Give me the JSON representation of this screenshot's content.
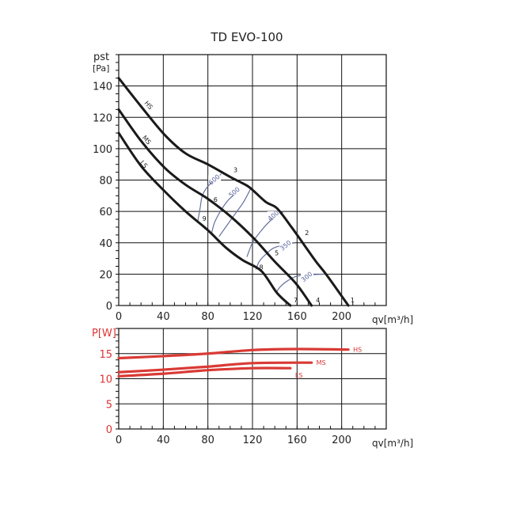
{
  "chart_data": [
    {
      "type": "line",
      "title": "TD EVO-100",
      "ylabel_symbol": "pst",
      "ylabel_unit": "[Pa]",
      "xlabel": "qv[m³/h]",
      "xlim": [
        0,
        240
      ],
      "ylim": [
        0,
        160
      ],
      "xticks": [
        0,
        40,
        80,
        120,
        160,
        200
      ],
      "yticks": [
        0,
        20,
        40,
        60,
        80,
        100,
        120,
        140
      ],
      "grid": true,
      "series": [
        {
          "name": "HS",
          "label_at": [
            20,
            127
          ],
          "points": [
            [
              0,
              145
            ],
            [
              20,
              127
            ],
            [
              41,
              109
            ],
            [
              60,
              97
            ],
            [
              80,
              90
            ],
            [
              100,
              82
            ],
            [
              111,
              78
            ],
            [
              118,
              75
            ],
            [
              132,
              66
            ],
            [
              142,
              62
            ],
            [
              155,
              50
            ],
            [
              166,
              39
            ],
            [
              177,
              28
            ],
            [
              187,
              19
            ],
            [
              206,
              0
            ]
          ]
        },
        {
          "name": "MS",
          "label_at": [
            18,
            105
          ],
          "points": [
            [
              0,
              125
            ],
            [
              20,
              105
            ],
            [
              41,
              88
            ],
            [
              60,
              77
            ],
            [
              80,
              68
            ],
            [
              100,
              57
            ],
            [
              121,
              43
            ],
            [
              140,
              28
            ],
            [
              159,
              14
            ],
            [
              173,
              0
            ]
          ]
        },
        {
          "name": "LS",
          "label_at": [
            16,
            89
          ],
          "points": [
            [
              0,
              110
            ],
            [
              20,
              89
            ],
            [
              41,
              73
            ],
            [
              60,
              60
            ],
            [
              80,
              48
            ],
            [
              96,
              37
            ],
            [
              111,
              29
            ],
            [
              128,
              22
            ],
            [
              142,
              8
            ],
            [
              154,
              0
            ]
          ]
        }
      ],
      "iso_lines": [
        {
          "label": "600",
          "label_at": [
            86,
            80
          ],
          "points": [
            [
              71,
              54
            ],
            [
              73,
              62
            ],
            [
              75,
              70
            ],
            [
              80,
              76
            ],
            [
              88,
              81
            ],
            [
              92,
              84
            ]
          ]
        },
        {
          "label": "500",
          "label_at": [
            104,
            72
          ],
          "points": [
            [
              83,
              45
            ],
            [
              86,
              53
            ],
            [
              92,
              61
            ],
            [
              98,
              67
            ],
            [
              104,
              71
            ]
          ]
        },
        {
          "label": "",
          "label_at": null,
          "points": [
            [
              90,
              44
            ],
            [
              104,
              58
            ],
            [
              112,
              66
            ],
            [
              118,
              74
            ]
          ]
        },
        {
          "label": "400",
          "label_at": [
            139,
            57
          ],
          "points": [
            [
              115,
              31
            ],
            [
              120,
              40
            ],
            [
              127,
              47
            ],
            [
              136,
              54
            ],
            [
              148,
              60
            ]
          ]
        },
        {
          "label": "350",
          "label_at": [
            150,
            38
          ],
          "points": [
            [
              123,
              23
            ],
            [
              126,
              28
            ],
            [
              131,
              32
            ],
            [
              140,
              37
            ],
            [
              158,
              40
            ]
          ]
        },
        {
          "label": "300",
          "label_at": [
            169,
            18
          ],
          "points": [
            [
              141,
              8
            ],
            [
              145,
              12
            ],
            [
              152,
              16
            ],
            [
              162,
              19
            ],
            [
              185,
              20
            ]
          ]
        }
      ],
      "point_labels": [
        {
          "text": "1",
          "at": [
            208,
            2
          ]
        },
        {
          "text": "2",
          "at": [
            167,
            45
          ]
        },
        {
          "text": "3",
          "at": [
            103,
            85
          ]
        },
        {
          "text": "4",
          "at": [
            177,
            2
          ]
        },
        {
          "text": "5",
          "at": [
            140,
            32
          ]
        },
        {
          "text": "6",
          "at": [
            85,
            66
          ]
        },
        {
          "text": "7",
          "at": [
            157,
            2
          ]
        },
        {
          "text": "8",
          "at": [
            126,
            23
          ]
        },
        {
          "text": "9",
          "at": [
            75,
            54
          ]
        }
      ]
    },
    {
      "type": "line",
      "ylabel": "P[W]",
      "xlabel": "qv[m³/h]",
      "xlim": [
        0,
        240
      ],
      "ylim": [
        0,
        20
      ],
      "xticks": [
        0,
        40,
        80,
        120,
        160,
        200
      ],
      "yticks": [
        0,
        5,
        10,
        15
      ],
      "grid": true,
      "series": [
        {
          "name": "HS",
          "points": [
            [
              0,
              14.1
            ],
            [
              40,
              14.5
            ],
            [
              80,
              15.0
            ],
            [
              120,
              15.7
            ],
            [
              160,
              15.9
            ],
            [
              206,
              15.8
            ]
          ]
        },
        {
          "name": "MS",
          "points": [
            [
              0,
              11.3
            ],
            [
              40,
              11.8
            ],
            [
              80,
              12.4
            ],
            [
              120,
              13.1
            ],
            [
              173,
              13.2
            ]
          ]
        },
        {
          "name": "LS",
          "points": [
            [
              0,
              10.5
            ],
            [
              40,
              11.0
            ],
            [
              80,
              11.7
            ],
            [
              120,
              12.1
            ],
            [
              154,
              12.1
            ]
          ]
        }
      ]
    }
  ],
  "colors": {
    "pressure": "#1a1a1a",
    "power": "#d93a35",
    "iso": "#6670a0"
  }
}
